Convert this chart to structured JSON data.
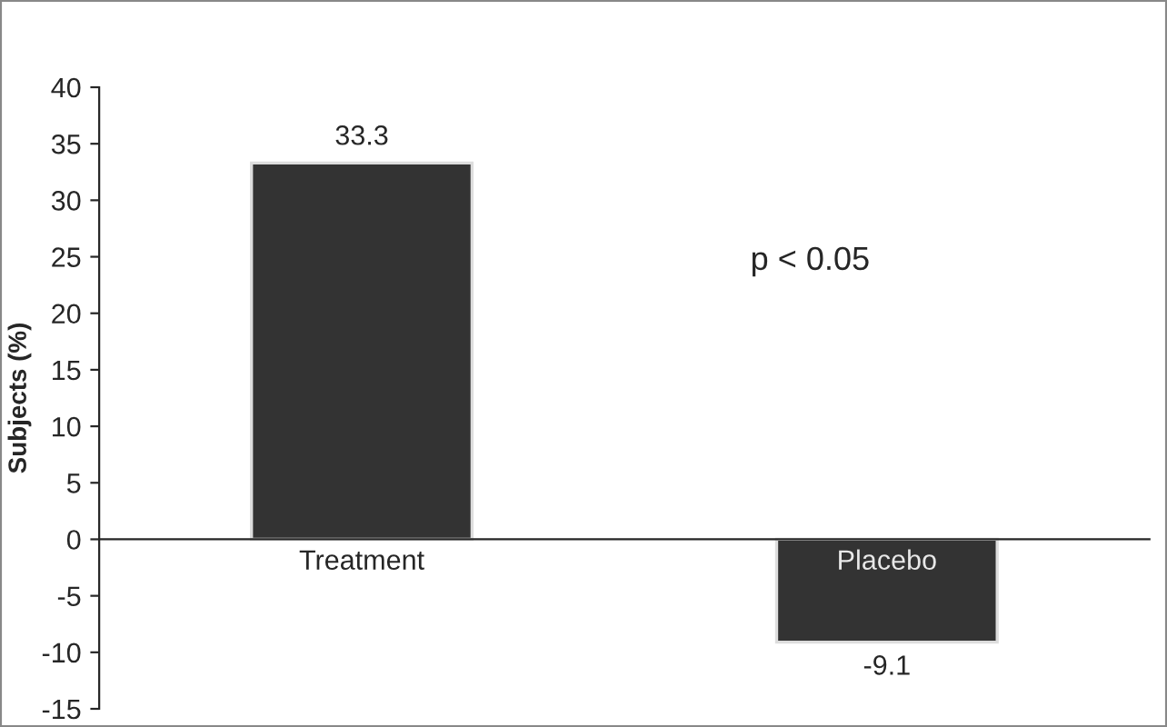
{
  "chart_data": {
    "type": "bar",
    "ylabel": "Subjects (%)",
    "categories": [
      "Treatment",
      "Placebo"
    ],
    "values": [
      33.3,
      -9.1
    ],
    "color": "#333333",
    "ylim": [
      -15,
      40
    ],
    "yticks": [
      -15,
      -10,
      -5,
      0,
      5,
      10,
      15,
      20,
      25,
      30,
      35,
      40
    ],
    "data_labels": true,
    "annotations": [
      "p < 0.05"
    ]
  }
}
